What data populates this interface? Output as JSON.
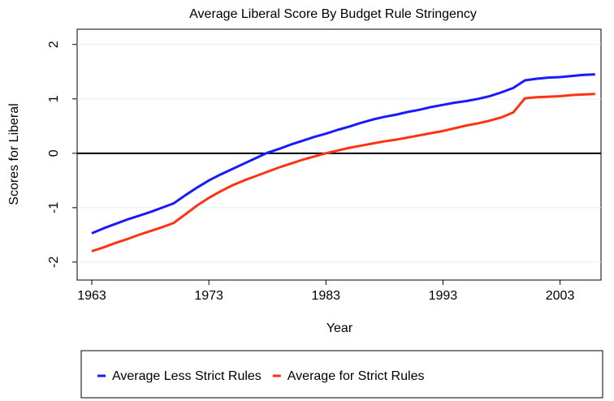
{
  "chart_data": {
    "type": "line",
    "title": "Average Liberal Score By Budget Rule Stringency",
    "x_label": "Year",
    "y_label": "Scores for Liberal",
    "x": [
      1963,
      1964,
      1965,
      1966,
      1967,
      1968,
      1969,
      1970,
      1971,
      1972,
      1973,
      1974,
      1975,
      1976,
      1977,
      1978,
      1979,
      1980,
      1981,
      1982,
      1983,
      1984,
      1985,
      1986,
      1987,
      1988,
      1989,
      1990,
      1991,
      1992,
      1993,
      1994,
      1995,
      1996,
      1997,
      1998,
      1999,
      2000,
      2001,
      2002,
      2003,
      2004,
      2005,
      2006
    ],
    "series": [
      {
        "name": "Average Less Strict Rules",
        "color": "#1a1aff",
        "values": [
          -1.47,
          -1.38,
          -1.3,
          -1.22,
          -1.15,
          -1.08,
          -1.0,
          -0.92,
          -0.77,
          -0.63,
          -0.5,
          -0.39,
          -0.29,
          -0.19,
          -0.09,
          0.01,
          0.08,
          0.16,
          0.23,
          0.3,
          0.36,
          0.43,
          0.49,
          0.56,
          0.62,
          0.67,
          0.71,
          0.76,
          0.8,
          0.85,
          0.89,
          0.93,
          0.96,
          1.0,
          1.05,
          1.12,
          1.2,
          1.34,
          1.37,
          1.39,
          1.4,
          1.42,
          1.44,
          1.45
        ]
      },
      {
        "name": "Average for Strict Rules",
        "color": "#ff3311",
        "values": [
          -1.8,
          -1.73,
          -1.65,
          -1.58,
          -1.5,
          -1.43,
          -1.36,
          -1.28,
          -1.12,
          -0.96,
          -0.82,
          -0.7,
          -0.59,
          -0.5,
          -0.42,
          -0.34,
          -0.26,
          -0.19,
          -0.12,
          -0.06,
          0.0,
          0.05,
          0.1,
          0.14,
          0.18,
          0.22,
          0.25,
          0.29,
          0.33,
          0.37,
          0.41,
          0.46,
          0.51,
          0.55,
          0.6,
          0.66,
          0.75,
          1.01,
          1.03,
          1.04,
          1.05,
          1.07,
          1.08,
          1.09
        ]
      }
    ],
    "xlim": [
      1961.75,
      2006.5
    ],
    "xticks": [
      1963,
      1973,
      1983,
      1993,
      2003
    ],
    "ylim": [
      -2.33,
      2.28
    ],
    "yticks": [
      -2,
      -1,
      0,
      1,
      2
    ],
    "grid": true,
    "hline": 0,
    "legend": "bottom"
  }
}
